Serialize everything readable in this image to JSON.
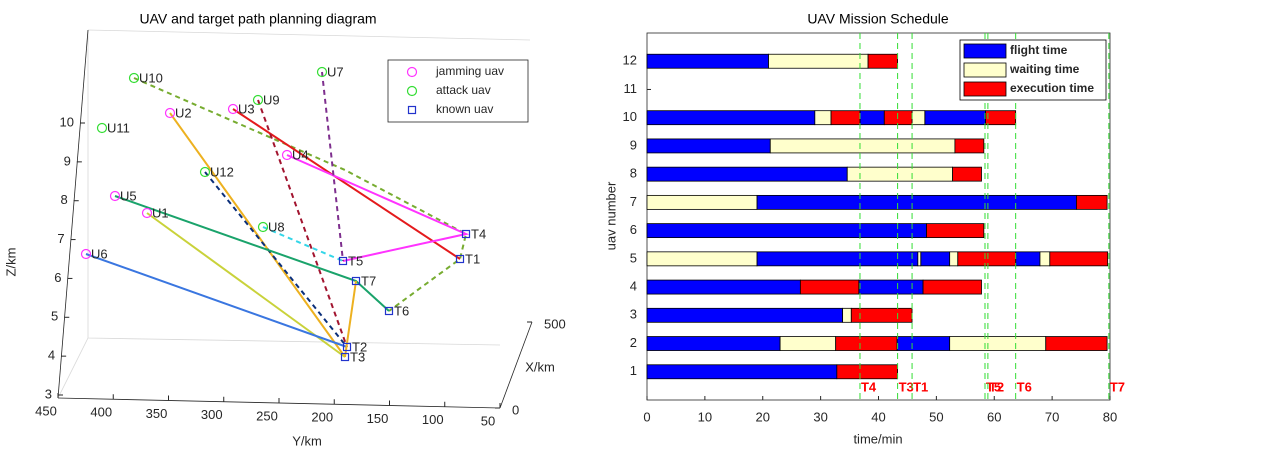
{
  "chart_data": [
    {
      "type": "path3d",
      "title": "UAV and target path planning diagram",
      "xlabel": "X/km",
      "ylabel": "Y/km",
      "zlabel": "Z/km",
      "xlim": [
        0,
        500
      ],
      "xticks": [
        0,
        500
      ],
      "ylim": [
        50,
        450
      ],
      "yticks": [
        450,
        400,
        350,
        300,
        250,
        200,
        150,
        100,
        50
      ],
      "zlim": [
        3,
        10
      ],
      "zticks": [
        3,
        4,
        5,
        6,
        7,
        8,
        9,
        10
      ],
      "series": [
        {
          "name": "jamming uav",
          "color": "#ff33ff",
          "marker": "circle"
        },
        {
          "name": "attack uav",
          "color": "#33dd33",
          "marker": "circle"
        },
        {
          "name": "known uav",
          "color": "#2233cc",
          "marker": "square"
        }
      ],
      "nodes": [
        {
          "label": "U10",
          "kind": 1
        },
        {
          "label": "U7",
          "kind": 1
        },
        {
          "label": "U9",
          "kind": 1
        },
        {
          "label": "U3",
          "kind": 0
        },
        {
          "label": "U2",
          "kind": 0
        },
        {
          "label": "U11",
          "kind": 1
        },
        {
          "label": "U4",
          "kind": 0
        },
        {
          "label": "U12",
          "kind": 1
        },
        {
          "label": "U5",
          "kind": 0
        },
        {
          "label": "U1",
          "kind": 0
        },
        {
          "label": "U8",
          "kind": 1
        },
        {
          "label": "U6",
          "kind": 0
        },
        {
          "label": "T4",
          "kind": 2
        },
        {
          "label": "T1",
          "kind": 2
        },
        {
          "label": "T5",
          "kind": 2
        },
        {
          "label": "T7",
          "kind": 2
        },
        {
          "label": "T6",
          "kind": 2
        },
        {
          "label": "T2",
          "kind": 2
        },
        {
          "label": "T3",
          "kind": 2
        }
      ]
    },
    {
      "type": "gantt",
      "title": "UAV Mission Schedule",
      "xlabel": "time/min",
      "ylabel": "uav number",
      "xlim": [
        0,
        80
      ],
      "xticks": [
        0,
        10,
        20,
        30,
        40,
        50,
        60,
        70,
        80
      ],
      "ylim": [
        0,
        13
      ],
      "yticks": [
        1,
        2,
        3,
        4,
        5,
        6,
        7,
        8,
        9,
        10,
        11,
        12
      ],
      "legend": "upper right",
      "series": [
        {
          "name": "flight time",
          "color": "#0000ff",
          "bars": [
            [
              12,
              0,
              21
            ],
            [
              10,
              0,
              29
            ],
            [
              10,
              36.8,
              41
            ],
            [
              10,
              48,
              58.5
            ],
            [
              9,
              0,
              21.3
            ],
            [
              8,
              0,
              34.6
            ],
            [
              7,
              19,
              74.2
            ],
            [
              6,
              0,
              48.3
            ],
            [
              5,
              19,
              46.8
            ],
            [
              5,
              47.3,
              52.3
            ],
            [
              5,
              63.7,
              67.9
            ],
            [
              4,
              0,
              26.5
            ],
            [
              4,
              36.6,
              47.7
            ],
            [
              3,
              0,
              33.8
            ],
            [
              2,
              0,
              23
            ],
            [
              2,
              43.2,
              52.3
            ],
            [
              1,
              0,
              32.8
            ]
          ]
        },
        {
          "name": "waiting time",
          "color": "#ffffcc",
          "bars": [
            [
              12,
              21,
              38.2
            ],
            [
              10,
              29,
              31.8
            ],
            [
              10,
              45.8,
              48
            ],
            [
              9,
              21.3,
              53.2
            ],
            [
              8,
              34.6,
              52.8
            ],
            [
              7,
              0,
              19
            ],
            [
              5,
              0,
              19
            ],
            [
              5,
              46.8,
              47.3
            ],
            [
              5,
              52.3,
              53.7
            ],
            [
              5,
              67.9,
              69.6
            ],
            [
              3,
              33.8,
              35.3
            ],
            [
              2,
              23,
              32.6
            ],
            [
              2,
              52.3,
              68.9
            ]
          ]
        },
        {
          "name": "execution time",
          "color": "#ff0000",
          "bars": [
            [
              12,
              38.2,
              43.3
            ],
            [
              10,
              31.8,
              36.8
            ],
            [
              10,
              41,
              45.8
            ],
            [
              10,
              58.5,
              63.7
            ],
            [
              9,
              53.2,
              58.2
            ],
            [
              8,
              52.8,
              57.8
            ],
            [
              7,
              74.2,
              79.5
            ],
            [
              6,
              48.3,
              58.2
            ],
            [
              5,
              53.7,
              63.7
            ],
            [
              5,
              69.6,
              79.6
            ],
            [
              4,
              26.5,
              36.6
            ],
            [
              4,
              47.7,
              57.8
            ],
            [
              3,
              35.3,
              45.8
            ],
            [
              2,
              32.6,
              43.2
            ],
            [
              2,
              68.9,
              79.5
            ],
            [
              1,
              32.8,
              43.3
            ]
          ]
        }
      ],
      "markers": [
        {
          "label": "T4",
          "value": 36.8
        },
        {
          "label": "T3",
          "value": 43.3
        },
        {
          "label": "T1",
          "value": 45.8
        },
        {
          "label": "T5",
          "value": 58.4
        },
        {
          "label": "T2",
          "value": 58.9
        },
        {
          "label": "T6",
          "value": 63.7
        },
        {
          "label": "T7",
          "value": 79.8
        }
      ],
      "marker_color": "#ff0000",
      "marker_line_color": "#33dd33"
    }
  ]
}
